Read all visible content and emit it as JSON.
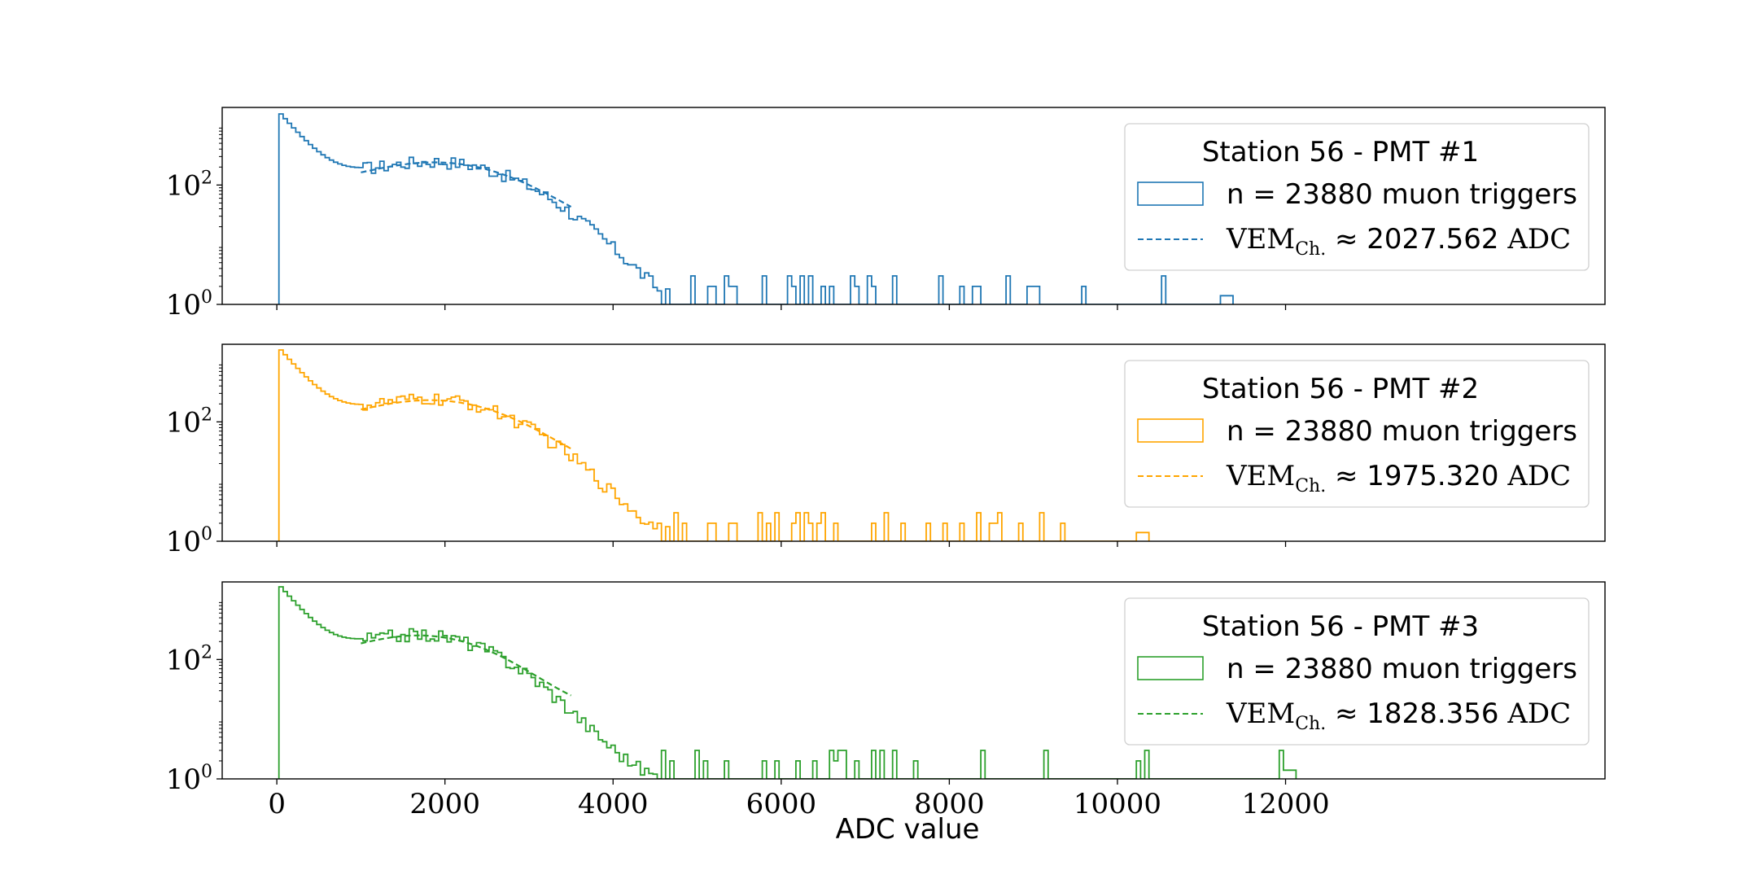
{
  "chart_data": {
    "type": "histogram",
    "xlabel": "ADC value",
    "xlim": [
      -650,
      15800
    ],
    "x_ticks": [
      "0",
      "2000",
      "4000",
      "6000",
      "8000",
      "10000",
      "12000"
    ],
    "x_tick_values": [
      0,
      2000,
      4000,
      6000,
      8000,
      10000,
      12000
    ],
    "yscale": "log",
    "y_ticks": [
      {
        "base": "10",
        "exp": "0",
        "value": 1
      },
      {
        "base": "10",
        "exp": "2",
        "value": 100
      }
    ],
    "panels": [
      {
        "legend_title": "Station 56 - PMT #1",
        "color": "#1f77b4",
        "hist_label": "n = 23880 muon triggers",
        "fit_label_prefix": "VEM",
        "fit_label_sub": "Ch.",
        "fit_label_approx": "≈",
        "fit_label_value": "2027.562",
        "fit_label_unit": "ADC",
        "vem": 2027.562,
        "peak_value": 1400,
        "fit_peak_value": 230,
        "tail_start": 6000,
        "tail_end": 11300,
        "gaps": [
          [
            6700,
            6750
          ],
          [
            7250,
            7300
          ],
          [
            7700,
            7750
          ],
          [
            8400,
            8500
          ],
          [
            9100,
            9200
          ],
          [
            9700,
            10500
          ],
          [
            10600,
            11200
          ]
        ]
      },
      {
        "legend_title": "Station 56 - PMT #2",
        "color": "#ffa500",
        "hist_label": "n = 23880 muon triggers",
        "fit_label_prefix": "VEM",
        "fit_label_sub": "Ch.",
        "fit_label_approx": "≈",
        "fit_label_value": "1975.320",
        "fit_label_unit": "ADC",
        "vem": 1975.32,
        "peak_value": 1450,
        "fit_peak_value": 220,
        "tail_start": 6000,
        "tail_end": 10300,
        "gaps": [
          [
            6050,
            6100
          ],
          [
            6550,
            6600
          ],
          [
            7000,
            7050
          ],
          [
            7500,
            7600
          ],
          [
            8000,
            8100
          ],
          [
            8700,
            8800
          ],
          [
            9400,
            10200
          ]
        ]
      },
      {
        "legend_title": "Station 56 - PMT #3",
        "color": "#2ca02c",
        "hist_label": "n = 23880 muon triggers",
        "fit_label_prefix": "VEM",
        "fit_label_sub": "Ch.",
        "fit_label_approx": "≈",
        "fit_label_value": "1828.356",
        "fit_label_unit": "ADC",
        "vem": 1828.356,
        "peak_value": 1500,
        "fit_peak_value": 240,
        "tail_start": 5700,
        "tail_end": 12050,
        "gaps": [
          [
            7000,
            7050
          ],
          [
            7500,
            7550
          ],
          [
            7800,
            8200
          ],
          [
            8500,
            8900
          ],
          [
            9300,
            10200
          ],
          [
            10600,
            11900
          ]
        ]
      }
    ]
  }
}
